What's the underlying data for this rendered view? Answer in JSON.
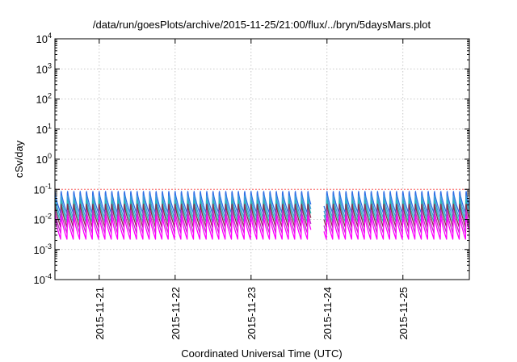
{
  "chart_data": {
    "type": "line",
    "title": "/data/run/goesPlots/archive/2015-11-25/21:00/flux/../bryn/5daysMars.plot",
    "xlabel": "Coordinated Universal Time (UTC)",
    "ylabel": "cSv/day",
    "y_scale": "log",
    "ylim": [
      0.0001,
      10000
    ],
    "xlim": [
      "2015-11-20 10:00",
      "2015-11-25 21:00"
    ],
    "grid": true,
    "legend": "none",
    "reference_line": {
      "y": 0.1,
      "color": "#ff6a6a"
    },
    "y_ticks": [
      {
        "value": 0.0001,
        "base": "10",
        "exp": "-4"
      },
      {
        "value": 0.001,
        "base": "10",
        "exp": "-3"
      },
      {
        "value": 0.01,
        "base": "10",
        "exp": "-2"
      },
      {
        "value": 0.1,
        "base": "10",
        "exp": "-1"
      },
      {
        "value": 1,
        "base": "10",
        "exp": "0"
      },
      {
        "value": 10,
        "base": "10",
        "exp": "1"
      },
      {
        "value": 100,
        "base": "10",
        "exp": "2"
      },
      {
        "value": 1000,
        "base": "10",
        "exp": "3"
      },
      {
        "value": 10000,
        "base": "10",
        "exp": "4"
      }
    ],
    "x_ticks": [
      {
        "value": "2015-11-21",
        "label": "2015-11-21"
      },
      {
        "value": "2015-11-22",
        "label": "2015-11-22"
      },
      {
        "value": "2015-11-23",
        "label": "2015-11-23"
      },
      {
        "value": "2015-11-24",
        "label": "2015-11-24"
      },
      {
        "value": "2015-11-25",
        "label": "2015-11-25"
      }
    ],
    "cycle_hours": 2,
    "data_gap": [
      "2015-11-23 19:00",
      "2015-11-23 23:00"
    ],
    "series": [
      {
        "color": "#2f6fe6",
        "peak": 0.085,
        "trough": 0.016
      },
      {
        "color": "#3da0d8",
        "peak": 0.06,
        "trough": 0.011
      },
      {
        "color": "#2ab7b4",
        "peak": 0.042,
        "trough": 0.008
      },
      {
        "color": "#8b2e4e",
        "peak": 0.032,
        "trough": 0.0055
      },
      {
        "color": "#c030c8",
        "peak": 0.02,
        "trough": 0.0035
      },
      {
        "color": "#ff00ff",
        "peak": 0.013,
        "trough": 0.0022
      }
    ]
  }
}
